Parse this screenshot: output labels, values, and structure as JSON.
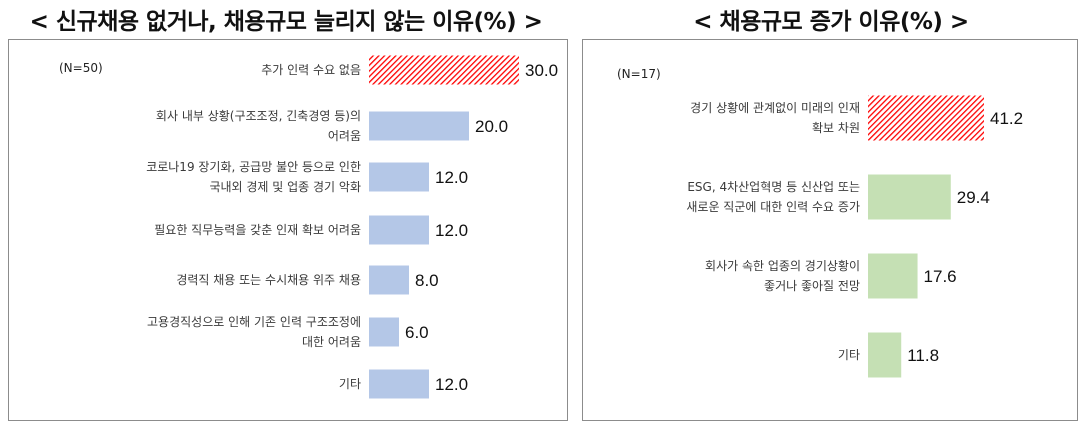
{
  "chart_data": [
    {
      "type": "bar",
      "orientation": "horizontal",
      "title": "< 신규채용 없거나, 채용규모 늘리지 않는 이유(%) >",
      "sample_label": "(N=50)",
      "categories": [
        [
          "추가 인력 수요 없음"
        ],
        [
          "회사 내부 상황(구조조정, 긴축경영 등)의",
          "어려움"
        ],
        [
          "코로나19 장기화, 공급망 불안 등으로 인한",
          "국내외 경제 및 업종 경기 악화"
        ],
        [
          "필요한 직무능력을 갖춘 인재 확보 어려움"
        ],
        [
          "경력직 채용 또는 수시채용 위주 채용"
        ],
        [
          "고용경직성으로 인해 기존 인력 구조조정에",
          "대한 어려움"
        ],
        [
          "기타"
        ]
      ],
      "values": [
        30.0,
        20.0,
        12.0,
        12.0,
        8.0,
        6.0,
        12.0
      ],
      "value_labels": [
        "30.0",
        "20.0",
        "12.0",
        "12.0",
        "8.0",
        "6.0",
        "12.0"
      ],
      "highlight_index": 0,
      "colors": {
        "bar": "#b4c7e7",
        "highlight": "#ff0000"
      }
    },
    {
      "type": "bar",
      "orientation": "horizontal",
      "title": "< 채용규모 증가 이유(%) >",
      "sample_label": "(N=17)",
      "categories": [
        [
          "경기 상황에 관계없이 미래의 인재",
          "확보 차원"
        ],
        [
          "ESG, 4차산업혁명 등 신산업 또는",
          "새로운 직군에 대한 인력 수요 증가"
        ],
        [
          "회사가 속한 업종의 경기상황이",
          "좋거나 좋아질 전망"
        ],
        [
          "기타"
        ]
      ],
      "values": [
        41.2,
        29.4,
        17.6,
        11.8
      ],
      "value_labels": [
        "41.2",
        "29.4",
        "17.6",
        "11.8"
      ],
      "highlight_index": 0,
      "colors": {
        "bar": "#c5e0b4",
        "highlight": "#ff0000"
      }
    }
  ]
}
